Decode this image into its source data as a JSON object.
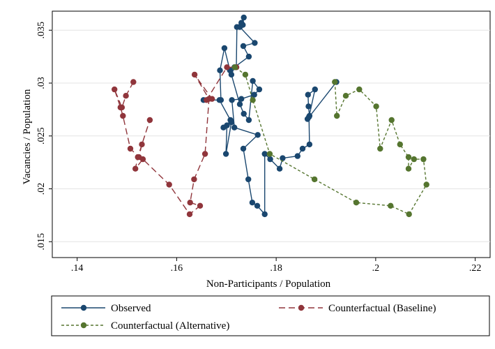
{
  "chart_data": {
    "type": "line",
    "xlabel": "Non-Participants / Population",
    "ylabel": "Vacancies / Population",
    "xlim": [
      0.135,
      0.223
    ],
    "ylim": [
      0.0135,
      0.0368
    ],
    "xticks": [
      0.14,
      0.16,
      0.18,
      0.2,
      0.22
    ],
    "xtick_labels": [
      ".14",
      ".16",
      ".18",
      ".2",
      ".22"
    ],
    "yticks": [
      0.015,
      0.02,
      0.025,
      0.03,
      0.035
    ],
    "ytick_labels": [
      ".015",
      ".02",
      ".025",
      ".03",
      ".035"
    ],
    "grid": "horizontal",
    "legend_position": "bottom",
    "series": [
      {
        "name": "Observed",
        "color": "#1a476f",
        "dash": "solid",
        "points": [
          [
            0.1921,
            0.0301
          ],
          [
            0.1863,
            0.0266
          ],
          [
            0.1867,
            0.0269
          ],
          [
            0.1865,
            0.0278
          ],
          [
            0.1864,
            0.0289
          ],
          [
            0.1878,
            0.0294
          ],
          [
            0.1866,
            0.0268
          ],
          [
            0.1867,
            0.0242
          ],
          [
            0.1853,
            0.0238
          ],
          [
            0.1843,
            0.0231
          ],
          [
            0.1813,
            0.0229
          ],
          [
            0.1807,
            0.0219
          ],
          [
            0.1788,
            0.0228
          ],
          [
            0.1777,
            0.0233
          ],
          [
            0.1777,
            0.0176
          ],
          [
            0.1762,
            0.0184
          ],
          [
            0.1752,
            0.0187
          ],
          [
            0.1744,
            0.0209
          ],
          [
            0.1734,
            0.0238
          ],
          [
            0.1763,
            0.0251
          ],
          [
            0.1716,
            0.0258
          ],
          [
            0.1711,
            0.0284
          ],
          [
            0.173,
            0.0285
          ],
          [
            0.1756,
            0.0289
          ],
          [
            0.1766,
            0.0294
          ],
          [
            0.1753,
            0.0302
          ],
          [
            0.1745,
            0.0265
          ],
          [
            0.1735,
            0.0271
          ],
          [
            0.1727,
            0.028
          ],
          [
            0.171,
            0.0308
          ],
          [
            0.1716,
            0.0315
          ],
          [
            0.1745,
            0.0325
          ],
          [
            0.1734,
            0.0335
          ],
          [
            0.1757,
            0.0338
          ],
          [
            0.1727,
            0.0353
          ],
          [
            0.1733,
            0.0355
          ],
          [
            0.1735,
            0.0362
          ],
          [
            0.173,
            0.0357
          ],
          [
            0.1721,
            0.0353
          ],
          [
            0.172,
            0.0315
          ],
          [
            0.1707,
            0.0312
          ],
          [
            0.1696,
            0.0333
          ],
          [
            0.1687,
            0.0312
          ],
          [
            0.1689,
            0.0284
          ],
          [
            0.1654,
            0.0284
          ],
          [
            0.1686,
            0.0284
          ],
          [
            0.1708,
            0.0265
          ],
          [
            0.1701,
            0.026
          ],
          [
            0.1699,
            0.0233
          ],
          [
            0.171,
            0.0263
          ],
          [
            0.1694,
            0.0258
          ]
        ]
      },
      {
        "name": "Counterfactual (Baseline)",
        "color": "#90353b",
        "dash": "longdash",
        "points": [
          [
            0.1513,
            0.0301
          ],
          [
            0.1498,
            0.0288
          ],
          [
            0.149,
            0.0277
          ],
          [
            0.1475,
            0.0294
          ],
          [
            0.1487,
            0.0277
          ],
          [
            0.1492,
            0.0269
          ],
          [
            0.1507,
            0.0238
          ],
          [
            0.1524,
            0.023
          ],
          [
            0.153,
            0.0242
          ],
          [
            0.1546,
            0.0265
          ],
          [
            0.1522,
            0.023
          ],
          [
            0.1517,
            0.0219
          ],
          [
            0.1532,
            0.0228
          ],
          [
            0.1585,
            0.0204
          ],
          [
            0.1626,
            0.0176
          ],
          [
            0.1647,
            0.0184
          ],
          [
            0.1627,
            0.0187
          ],
          [
            0.1635,
            0.0209
          ],
          [
            0.1657,
            0.0233
          ],
          [
            0.1665,
            0.0285
          ],
          [
            0.1636,
            0.0308
          ],
          [
            0.1671,
            0.0285
          ],
          [
            0.166,
            0.0284
          ],
          [
            0.1701,
            0.0315
          ],
          [
            0.172,
            0.0315
          ]
        ]
      },
      {
        "name": "Counterfactual (Alternative)",
        "color": "#55752f",
        "dash": "shortdash",
        "points": [
          [
            0.1918,
            0.0301
          ],
          [
            0.1922,
            0.0269
          ],
          [
            0.194,
            0.0288
          ],
          [
            0.1967,
            0.0294
          ],
          [
            0.2001,
            0.0278
          ],
          [
            0.2009,
            0.0238
          ],
          [
            0.2032,
            0.0265
          ],
          [
            0.2049,
            0.0242
          ],
          [
            0.2066,
            0.023
          ],
          [
            0.2066,
            0.0219
          ],
          [
            0.2077,
            0.0228
          ],
          [
            0.2096,
            0.0228
          ],
          [
            0.2102,
            0.0204
          ],
          [
            0.2067,
            0.0176
          ],
          [
            0.203,
            0.0184
          ],
          [
            0.1961,
            0.0187
          ],
          [
            0.1877,
            0.0209
          ],
          [
            0.1787,
            0.0233
          ],
          [
            0.1753,
            0.0284
          ],
          [
            0.1738,
            0.0308
          ],
          [
            0.1717,
            0.0315
          ]
        ]
      }
    ]
  }
}
